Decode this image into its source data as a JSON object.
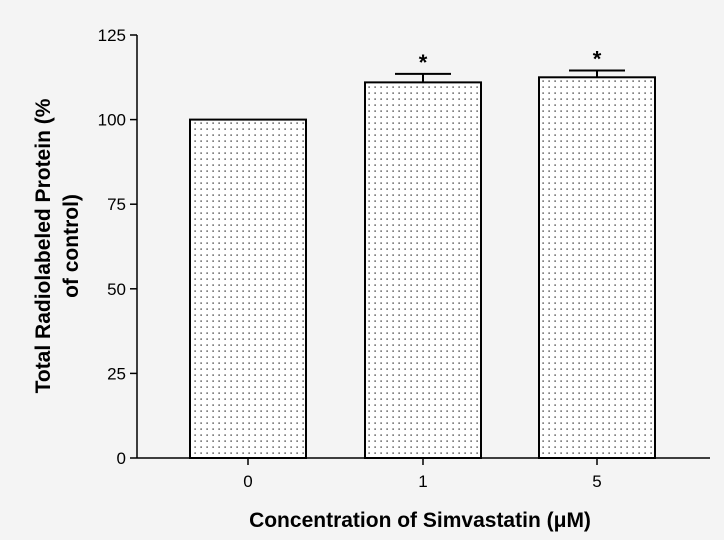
{
  "chart_data": {
    "type": "bar",
    "title": "",
    "xlabel": "Concentration of Simvastatin (μM)",
    "ylabel_line1": "Total Radiolabeled Protein (%",
    "ylabel_line2": "of control)",
    "categories": [
      "0",
      "1",
      "5"
    ],
    "values": [
      100,
      111,
      112.5
    ],
    "error": [
      0,
      2.5,
      2
    ],
    "annotations": [
      "",
      "*",
      "*"
    ],
    "ylim": [
      0,
      125
    ],
    "yticks": [
      0,
      25,
      50,
      75,
      100,
      125
    ],
    "grid": false,
    "bar_fill": "dotted",
    "colors": {
      "bar_stroke": "#000000",
      "dot": "#000000",
      "background": "#f4f4f4"
    }
  }
}
